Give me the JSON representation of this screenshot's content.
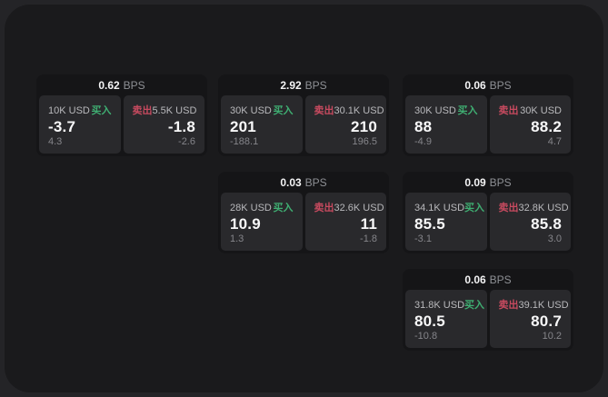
{
  "labels": {
    "bps_unit": "BPS",
    "buy": "买入",
    "sell": "卖出"
  },
  "colors": {
    "buy_green": "#3fae72",
    "sell_red": "#c74a5f",
    "canvas_bg": "#1a1a1c",
    "card_bg": "#151517",
    "panel_bg": "#29292c",
    "value_white": "#f8f8f9",
    "muted_gray": "#85858a"
  },
  "cards": [
    {
      "bps": "0.62",
      "buy": {
        "size": "10K USD",
        "value": "-3.7",
        "delta": "4.3"
      },
      "sell": {
        "size": "5.5K USD",
        "value": "-1.8",
        "delta": "-2.6"
      }
    },
    {
      "bps": "2.92",
      "buy": {
        "size": "30K USD",
        "value": "201",
        "delta": "-188.1"
      },
      "sell": {
        "size": "30.1K USD",
        "value": "210",
        "delta": "196.5"
      }
    },
    {
      "bps": "0.06",
      "buy": {
        "size": "30K USD",
        "value": "88",
        "delta": "-4.9"
      },
      "sell": {
        "size": "30K USD",
        "value": "88.2",
        "delta": "4.7"
      }
    },
    {
      "bps": "0.03",
      "buy": {
        "size": "28K USD",
        "value": "10.9",
        "delta": "1.3"
      },
      "sell": {
        "size": "32.6K USD",
        "value": "11",
        "delta": "-1.8"
      }
    },
    {
      "bps": "0.09",
      "buy": {
        "size": "34.1K USD",
        "value": "85.5",
        "delta": "-3.1"
      },
      "sell": {
        "size": "32.8K USD",
        "value": "85.8",
        "delta": "3.0"
      }
    },
    {
      "bps": "0.06",
      "buy": {
        "size": "31.8K USD",
        "value": "80.5",
        "delta": "-10.8"
      },
      "sell": {
        "size": "39.1K USD",
        "value": "80.7",
        "delta": "10.2"
      }
    }
  ]
}
